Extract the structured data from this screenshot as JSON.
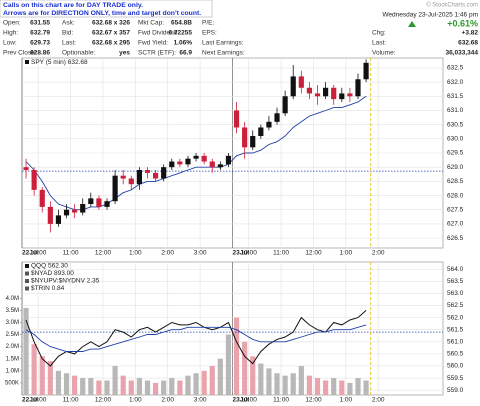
{
  "notice": [
    "Calls on this chart are for DAY TRADE only.",
    "Arrows are for DIRECTION ONLY, time and target don't count."
  ],
  "watermark": "© StockCharts.com",
  "quote": {
    "rows": [
      [
        [
          "Open:",
          "631.55"
        ],
        [
          "Ask:",
          "632.68 x 326"
        ],
        [
          "Mkt Cap:",
          "654.8B"
        ],
        [
          "P/E:"
        ]
      ],
      [
        [
          "High:",
          "632.79"
        ],
        [
          "Bid:",
          "632.67 x 357"
        ],
        [
          "Fwd Dividend:",
          "6.72255"
        ],
        [
          "EPS:"
        ]
      ],
      [
        [
          "Low:",
          "629.73"
        ],
        [
          "Last:",
          "632.68 x 295"
        ],
        [
          "Fwd Yield:",
          "1.06%"
        ],
        [
          "Last Earnings:"
        ]
      ],
      [
        [
          "Prev Close:",
          "628.86"
        ],
        [
          "Optionable:",
          "yes"
        ],
        [
          "SCTR (ETF):",
          "66.9"
        ],
        [
          "Next Earnings:"
        ]
      ]
    ]
  },
  "summary": {
    "date": "Wednesday 23-Jul-2025 1:46 pm",
    "change_pct": "+0.61%",
    "rows": [
      [
        "Chg:",
        "+3.82"
      ],
      [
        "Last:",
        "632.68"
      ],
      [
        "Volume:",
        "36,033,344"
      ]
    ]
  },
  "chart_data": [
    {
      "type": "candlestick",
      "legend": "SPY (5 min) 632.68",
      "up_color": "#111111",
      "down_color": "#cc1f3b",
      "x": [
        0,
        1,
        2,
        3,
        4,
        5,
        6,
        7,
        8,
        9,
        10,
        11,
        12,
        13,
        14,
        15,
        16,
        17,
        18,
        19,
        20,
        21,
        22,
        23,
        24,
        25,
        26,
        27,
        28,
        29,
        30,
        31,
        32,
        33,
        34,
        35,
        36,
        37,
        38,
        39,
        40,
        41,
        42
      ],
      "open": [
        629.0,
        628.9,
        628.2,
        627.6,
        627.0,
        627.3,
        627.5,
        627.4,
        627.7,
        627.9,
        627.6,
        627.8,
        628.7,
        628.6,
        628.4,
        628.9,
        628.8,
        628.6,
        629.0,
        629.2,
        629.1,
        629.3,
        629.4,
        629.2,
        629.0,
        629.1,
        631.0,
        630.4,
        629.7,
        630.1,
        630.4,
        630.6,
        630.9,
        631.5,
        632.2,
        631.8,
        631.6,
        631.5,
        631.8,
        631.4,
        631.6,
        631.5,
        632.1
      ],
      "high": [
        629.3,
        629.0,
        628.3,
        627.8,
        627.5,
        627.7,
        627.7,
        627.9,
        628.1,
        628.0,
        627.9,
        628.9,
        628.9,
        628.7,
        629.0,
        629.0,
        628.9,
        629.1,
        629.3,
        629.3,
        629.4,
        629.5,
        629.5,
        629.3,
        629.2,
        629.5,
        631.3,
        630.6,
        630.3,
        630.5,
        630.8,
        631.1,
        631.7,
        632.6,
        632.4,
        632.0,
        631.9,
        632.0,
        631.9,
        631.8,
        631.8,
        632.3,
        632.8
      ],
      "low": [
        628.6,
        628.0,
        627.4,
        626.7,
        626.9,
        627.2,
        627.2,
        627.3,
        627.6,
        627.5,
        627.5,
        627.7,
        628.4,
        628.2,
        628.2,
        628.6,
        628.5,
        628.5,
        628.9,
        629.0,
        629.0,
        629.2,
        629.1,
        628.8,
        628.9,
        629.0,
        630.2,
        629.3,
        629.6,
        630.0,
        630.3,
        630.5,
        630.8,
        631.4,
        631.6,
        631.4,
        631.2,
        631.4,
        631.2,
        631.3,
        631.3,
        631.4,
        632.0
      ],
      "close": [
        628.9,
        628.2,
        627.6,
        627.0,
        627.3,
        627.5,
        627.4,
        627.7,
        627.9,
        627.6,
        627.8,
        628.7,
        628.6,
        628.4,
        628.9,
        628.8,
        628.6,
        629.0,
        629.2,
        629.1,
        629.3,
        629.4,
        629.2,
        629.0,
        629.1,
        629.4,
        630.4,
        629.7,
        630.1,
        630.4,
        630.6,
        630.9,
        631.5,
        632.2,
        631.8,
        631.6,
        631.5,
        631.8,
        631.4,
        631.6,
        631.5,
        632.1,
        632.68
      ],
      "series": [
        {
          "color": "#1f3fa8",
          "values": [
            629.2,
            628.9,
            628.5,
            628.0,
            627.7,
            627.6,
            627.5,
            627.5,
            627.6,
            627.6,
            627.7,
            627.9,
            628.1,
            628.2,
            628.4,
            628.5,
            628.5,
            628.6,
            628.7,
            628.8,
            628.9,
            629.0,
            629.0,
            629.0,
            629.0,
            629.1,
            629.4,
            629.5,
            629.5,
            629.6,
            629.8,
            629.9,
            630.1,
            630.4,
            630.6,
            630.8,
            630.9,
            631.0,
            631.1,
            631.1,
            631.2,
            631.3,
            631.5
          ]
        }
      ],
      "reference_line": 628.86,
      "now_line_x": 43.07,
      "xlim": [
        0,
        52
      ],
      "xticks": [
        {
          "value": 0,
          "label": "22Jul"
        },
        {
          "value": 2,
          "label": "10:00"
        },
        {
          "value": 6,
          "label": "11:00"
        },
        {
          "value": 10,
          "label": "12:00"
        },
        {
          "value": 14,
          "label": "1:00"
        },
        {
          "value": 18,
          "label": "2:00"
        },
        {
          "value": 22,
          "label": "3:00"
        },
        {
          "value": 26,
          "label": "23Jul"
        },
        {
          "value": 28,
          "label": "10:00"
        },
        {
          "value": 32,
          "label": "11:00"
        },
        {
          "value": 36,
          "label": "12:00"
        },
        {
          "value": 40,
          "label": "1:00"
        },
        {
          "value": 44,
          "label": "2:00"
        }
      ],
      "ylim": [
        626.15,
        632.85
      ],
      "yticks": [
        626.5,
        {
          "value": 627,
          "label": "627.0"
        },
        627.5,
        {
          "value": 628,
          "label": "628.0"
        },
        628.5,
        {
          "value": 629,
          "label": "629.0"
        },
        629.5,
        {
          "value": 630,
          "label": "630.0"
        },
        630.5,
        {
          "value": 631,
          "label": "631.0"
        },
        631.5,
        {
          "value": 632,
          "label": "632.0"
        },
        632.5
      ],
      "grid": true
    },
    {
      "type": "line",
      "indicators": [
        "$NYAD 893.00",
        "$NYUPV:$NYDNV 2.35",
        "$TRIN 0.84"
      ],
      "x": [
        0,
        1,
        2,
        3,
        4,
        5,
        6,
        7,
        8,
        9,
        10,
        11,
        12,
        13,
        14,
        15,
        16,
        17,
        18,
        19,
        20,
        21,
        22,
        23,
        24,
        25,
        26,
        27,
        28,
        29,
        30,
        31,
        32,
        33,
        34,
        35,
        36,
        37,
        38,
        39,
        40,
        41,
        42
      ],
      "series": [
        {
          "name": "QQQ 562.30",
          "color": "#111111",
          "axis": "y2",
          "values": [
            561.9,
            561.0,
            560.3,
            560.0,
            560.4,
            560.6,
            560.5,
            560.8,
            561.0,
            560.8,
            561.0,
            561.5,
            561.4,
            561.2,
            561.5,
            561.6,
            561.4,
            561.6,
            561.8,
            561.7,
            561.7,
            561.8,
            561.6,
            561.5,
            561.6,
            561.8,
            561.0,
            560.4,
            560.1,
            560.6,
            560.9,
            561.1,
            561.2,
            561.4,
            562.0,
            561.7,
            561.5,
            561.4,
            561.8,
            561.7,
            561.9,
            562.0,
            562.3
          ]
        },
        {
          "color": "#1f3fa8",
          "axis": "y2",
          "values": [
            561.5,
            561.3,
            561.0,
            560.8,
            560.7,
            560.6,
            560.6,
            560.6,
            560.7,
            560.7,
            560.8,
            560.9,
            561.0,
            561.1,
            561.2,
            561.3,
            561.3,
            561.4,
            561.5,
            561.5,
            561.6,
            561.6,
            561.6,
            561.6,
            561.6,
            561.6,
            561.5,
            561.3,
            561.1,
            561.0,
            561.0,
            561.0,
            561.0,
            561.1,
            561.2,
            561.3,
            561.4,
            561.4,
            561.5,
            561.5,
            561.5,
            561.6,
            561.7
          ]
        },
        {
          "type": "bar",
          "axis": "y",
          "up_color": "#b8b8b8",
          "down_color": "#e9a3ad",
          "values": [
            3600000,
            2100000,
            1600000,
            1400000,
            1000000,
            900000,
            800000,
            700000,
            700000,
            600000,
            600000,
            1200000,
            800000,
            600000,
            700000,
            600000,
            500000,
            600000,
            700000,
            600000,
            800000,
            900000,
            1000000,
            1200000,
            1500000,
            2500000,
            3200000,
            2200000,
            1600000,
            1300000,
            1100000,
            900000,
            800000,
            900000,
            1200000,
            800000,
            700000,
            600000,
            700000,
            600000,
            500000,
            700000,
            600000
          ]
        }
      ],
      "reference_line": 561.4,
      "now_line_x": 43.07,
      "xlim": [
        0,
        52
      ],
      "xticks": [
        {
          "value": 0,
          "label": "22Jul"
        },
        {
          "value": 2,
          "label": "10:00"
        },
        {
          "value": 6,
          "label": "11:00"
        },
        {
          "value": 10,
          "label": "12:00"
        },
        {
          "value": 14,
          "label": "1:00"
        },
        {
          "value": 18,
          "label": "2:00"
        },
        {
          "value": 22,
          "label": "3:00"
        },
        {
          "value": 26,
          "label": "23Jul"
        },
        {
          "value": 28,
          "label": "10:00"
        },
        {
          "value": 32,
          "label": "11:00"
        },
        {
          "value": 36,
          "label": "12:00"
        },
        {
          "value": 40,
          "label": "1:00"
        },
        {
          "value": 44,
          "label": "2:00"
        }
      ],
      "ylim": [
        0,
        5500000
      ],
      "yticks": [
        {
          "value": 500000,
          "label": "500K"
        },
        {
          "value": 1000000,
          "label": "1.0M"
        },
        {
          "value": 1500000,
          "label": "1.5M"
        },
        {
          "value": 2000000,
          "label": "2.0M"
        },
        {
          "value": 2500000,
          "label": "2.5M"
        },
        {
          "value": 3000000,
          "label": "3.0M"
        },
        {
          "value": 3500000,
          "label": "3.5M"
        },
        {
          "value": 4000000,
          "label": "4.0M"
        }
      ],
      "y2lim": [
        558.8,
        564.3
      ],
      "y2ticks": [
        {
          "value": 559,
          "label": "559.0"
        },
        559.5,
        {
          "value": 560,
          "label": "560.0"
        },
        560.5,
        {
          "value": 561,
          "label": "561.0"
        },
        561.5,
        {
          "value": 562,
          "label": "562.0"
        },
        562.5,
        {
          "value": 563,
          "label": "563.0"
        },
        563.5,
        {
          "value": 564,
          "label": "564.0"
        }
      ],
      "grid": true
    }
  ]
}
